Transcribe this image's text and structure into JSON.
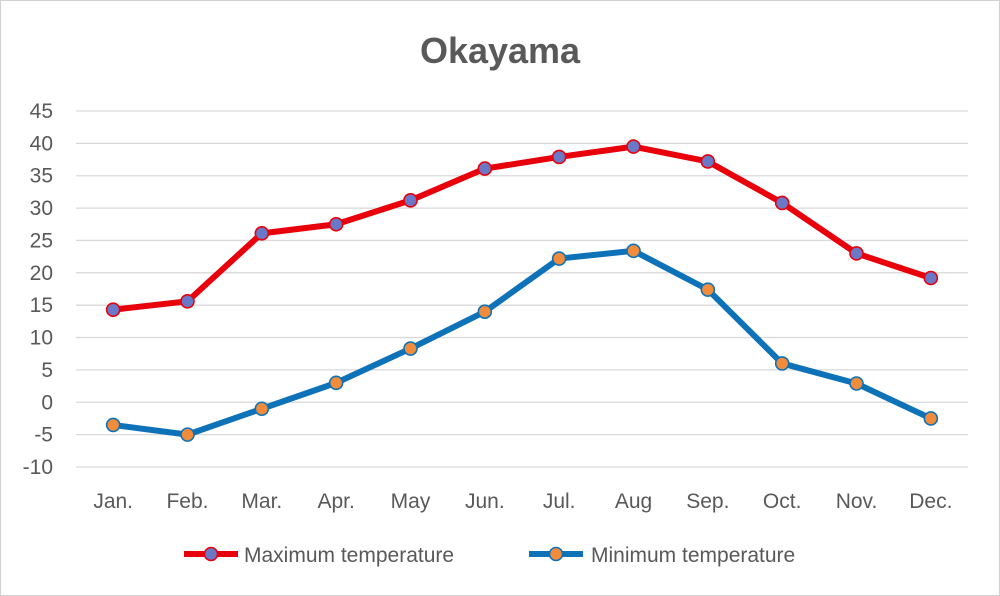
{
  "chart_data": {
    "type": "line",
    "title": "Okayama",
    "xlabel": "",
    "ylabel": "",
    "categories": [
      "Jan.",
      "Feb.",
      "Mar.",
      "Apr.",
      "May",
      "Jun.",
      "Jul.",
      "Aug",
      "Sep.",
      "Oct.",
      "Nov.",
      "Dec."
    ],
    "ylim": [
      -10,
      45
    ],
    "yticks": [
      -10,
      -5,
      0,
      5,
      10,
      15,
      20,
      25,
      30,
      35,
      40,
      45
    ],
    "grid": true,
    "legend_position": "bottom",
    "series": [
      {
        "name": "Maximum temperature",
        "color": "#e8000b",
        "marker_color": "#6a78c8",
        "values": [
          14.3,
          15.6,
          26.1,
          27.5,
          31.2,
          36.1,
          37.9,
          39.5,
          37.2,
          30.8,
          23.0,
          19.2
        ]
      },
      {
        "name": "Minimum temperature",
        "color": "#0e72b8",
        "marker_color": "#f08c3c",
        "values": [
          -3.5,
          -5.0,
          -1.0,
          3.0,
          8.3,
          14.0,
          22.2,
          23.4,
          17.4,
          6.0,
          2.9,
          -2.5
        ]
      }
    ]
  }
}
